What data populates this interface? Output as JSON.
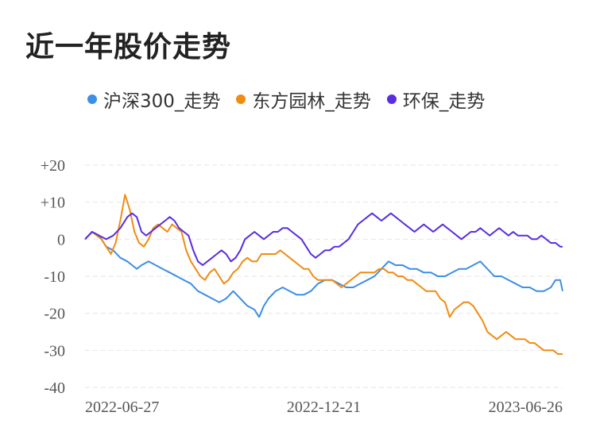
{
  "chart_data": {
    "type": "line",
    "title": "近一年股价走势",
    "xlabel": "",
    "ylabel": "",
    "ylim": [
      -40,
      20
    ],
    "y_ticks": [
      "+20",
      "+10",
      "0",
      "-10",
      "-20",
      "-30",
      "-40"
    ],
    "y_tick_values": [
      20,
      10,
      0,
      -10,
      -20,
      -30,
      -40
    ],
    "x_tick_labels": [
      "2022-06-27",
      "2022-12-21",
      "2023-06-26"
    ],
    "grid": true,
    "legend_position": "top",
    "series": [
      {
        "name": "沪深300_走势",
        "color": "#3b8fe6",
        "points": [
          [
            0,
            0
          ],
          [
            6,
            2
          ],
          [
            12,
            1
          ],
          [
            18,
            -2
          ],
          [
            24,
            -3
          ],
          [
            30,
            -5
          ],
          [
            36,
            -6
          ],
          [
            40,
            -7
          ],
          [
            44,
            -8
          ],
          [
            48,
            -7
          ],
          [
            54,
            -6
          ],
          [
            60,
            -7
          ],
          [
            66,
            -8
          ],
          [
            72,
            -9
          ],
          [
            78,
            -10
          ],
          [
            84,
            -11
          ],
          [
            90,
            -12
          ],
          [
            96,
            -14
          ],
          [
            102,
            -15
          ],
          [
            108,
            -16
          ],
          [
            114,
            -17
          ],
          [
            120,
            -16
          ],
          [
            126,
            -14
          ],
          [
            132,
            -16
          ],
          [
            138,
            -18
          ],
          [
            144,
            -19
          ],
          [
            148,
            -21
          ],
          [
            152,
            -18
          ],
          [
            156,
            -16
          ],
          [
            162,
            -14
          ],
          [
            168,
            -13
          ],
          [
            174,
            -14
          ],
          [
            180,
            -15
          ],
          [
            186,
            -15
          ],
          [
            192,
            -14
          ],
          [
            198,
            -12
          ],
          [
            204,
            -11
          ],
          [
            210,
            -11
          ],
          [
            216,
            -12
          ],
          [
            222,
            -13
          ],
          [
            228,
            -13
          ],
          [
            234,
            -12
          ],
          [
            240,
            -11
          ],
          [
            246,
            -10
          ],
          [
            252,
            -8
          ],
          [
            258,
            -6
          ],
          [
            264,
            -7
          ],
          [
            270,
            -7
          ],
          [
            276,
            -8
          ],
          [
            282,
            -8
          ],
          [
            288,
            -9
          ],
          [
            294,
            -9
          ],
          [
            300,
            -10
          ],
          [
            306,
            -10
          ],
          [
            312,
            -9
          ],
          [
            318,
            -8
          ],
          [
            324,
            -8
          ],
          [
            330,
            -7
          ],
          [
            336,
            -6
          ],
          [
            342,
            -8
          ],
          [
            348,
            -10
          ],
          [
            354,
            -10
          ],
          [
            360,
            -11
          ],
          [
            366,
            -12
          ],
          [
            372,
            -13
          ],
          [
            378,
            -13
          ],
          [
            384,
            -14
          ],
          [
            390,
            -14
          ],
          [
            396,
            -13
          ],
          [
            400,
            -11
          ],
          [
            404,
            -11
          ],
          [
            406,
            -14
          ]
        ]
      },
      {
        "name": "东方园林_走势",
        "color": "#f08c12",
        "points": [
          [
            0,
            0
          ],
          [
            6,
            2
          ],
          [
            10,
            1
          ],
          [
            14,
            0
          ],
          [
            18,
            -2
          ],
          [
            22,
            -4
          ],
          [
            26,
            -1
          ],
          [
            30,
            5
          ],
          [
            34,
            12
          ],
          [
            38,
            8
          ],
          [
            42,
            2
          ],
          [
            46,
            -1
          ],
          [
            50,
            -2
          ],
          [
            54,
            0
          ],
          [
            58,
            3
          ],
          [
            62,
            4
          ],
          [
            66,
            3
          ],
          [
            70,
            2
          ],
          [
            74,
            4
          ],
          [
            78,
            3
          ],
          [
            82,
            2
          ],
          [
            86,
            -3
          ],
          [
            90,
            -6
          ],
          [
            94,
            -8
          ],
          [
            98,
            -10
          ],
          [
            102,
            -11
          ],
          [
            106,
            -9
          ],
          [
            110,
            -8
          ],
          [
            114,
            -10
          ],
          [
            118,
            -12
          ],
          [
            122,
            -11
          ],
          [
            126,
            -9
          ],
          [
            130,
            -8
          ],
          [
            134,
            -6
          ],
          [
            138,
            -5
          ],
          [
            142,
            -6
          ],
          [
            146,
            -6
          ],
          [
            150,
            -4
          ],
          [
            154,
            -4
          ],
          [
            158,
            -4
          ],
          [
            162,
            -4
          ],
          [
            166,
            -3
          ],
          [
            170,
            -4
          ],
          [
            174,
            -5
          ],
          [
            178,
            -6
          ],
          [
            182,
            -7
          ],
          [
            186,
            -8
          ],
          [
            190,
            -8
          ],
          [
            194,
            -10
          ],
          [
            198,
            -11
          ],
          [
            202,
            -11
          ],
          [
            206,
            -11
          ],
          [
            210,
            -11
          ],
          [
            214,
            -12
          ],
          [
            218,
            -13
          ],
          [
            222,
            -12
          ],
          [
            226,
            -11
          ],
          [
            230,
            -10
          ],
          [
            234,
            -9
          ],
          [
            238,
            -9
          ],
          [
            242,
            -9
          ],
          [
            246,
            -9
          ],
          [
            250,
            -8
          ],
          [
            254,
            -8
          ],
          [
            258,
            -9
          ],
          [
            262,
            -9
          ],
          [
            266,
            -10
          ],
          [
            270,
            -10
          ],
          [
            274,
            -11
          ],
          [
            278,
            -11
          ],
          [
            282,
            -12
          ],
          [
            286,
            -13
          ],
          [
            290,
            -14
          ],
          [
            294,
            -14
          ],
          [
            298,
            -14
          ],
          [
            302,
            -16
          ],
          [
            306,
            -17
          ],
          [
            310,
            -21
          ],
          [
            314,
            -19
          ],
          [
            318,
            -18
          ],
          [
            322,
            -17
          ],
          [
            326,
            -17
          ],
          [
            330,
            -18
          ],
          [
            334,
            -20
          ],
          [
            338,
            -22
          ],
          [
            342,
            -25
          ],
          [
            346,
            -26
          ],
          [
            350,
            -27
          ],
          [
            354,
            -26
          ],
          [
            358,
            -25
          ],
          [
            362,
            -26
          ],
          [
            366,
            -27
          ],
          [
            370,
            -27
          ],
          [
            374,
            -27
          ],
          [
            378,
            -28
          ],
          [
            382,
            -28
          ],
          [
            386,
            -29
          ],
          [
            390,
            -30
          ],
          [
            394,
            -30
          ],
          [
            398,
            -30
          ],
          [
            402,
            -31
          ],
          [
            406,
            -31
          ]
        ]
      },
      {
        "name": "环保_走势",
        "color": "#5a2de0",
        "points": [
          [
            0,
            0
          ],
          [
            6,
            2
          ],
          [
            12,
            1
          ],
          [
            18,
            0
          ],
          [
            24,
            1
          ],
          [
            30,
            3
          ],
          [
            36,
            6
          ],
          [
            40,
            7
          ],
          [
            44,
            6
          ],
          [
            48,
            2
          ],
          [
            52,
            1
          ],
          [
            56,
            2
          ],
          [
            60,
            3
          ],
          [
            64,
            4
          ],
          [
            68,
            5
          ],
          [
            72,
            6
          ],
          [
            76,
            5
          ],
          [
            80,
            3
          ],
          [
            84,
            2
          ],
          [
            88,
            1
          ],
          [
            92,
            -3
          ],
          [
            96,
            -6
          ],
          [
            100,
            -7
          ],
          [
            104,
            -6
          ],
          [
            108,
            -5
          ],
          [
            112,
            -4
          ],
          [
            116,
            -3
          ],
          [
            120,
            -4
          ],
          [
            124,
            -6
          ],
          [
            128,
            -5
          ],
          [
            132,
            -3
          ],
          [
            136,
            0
          ],
          [
            140,
            1
          ],
          [
            144,
            2
          ],
          [
            148,
            1
          ],
          [
            152,
            0
          ],
          [
            156,
            1
          ],
          [
            160,
            2
          ],
          [
            164,
            2
          ],
          [
            168,
            3
          ],
          [
            172,
            3
          ],
          [
            176,
            2
          ],
          [
            180,
            1
          ],
          [
            184,
            0
          ],
          [
            188,
            -2
          ],
          [
            192,
            -4
          ],
          [
            196,
            -5
          ],
          [
            200,
            -4
          ],
          [
            204,
            -3
          ],
          [
            208,
            -3
          ],
          [
            212,
            -2
          ],
          [
            216,
            -2
          ],
          [
            220,
            -1
          ],
          [
            224,
            0
          ],
          [
            228,
            2
          ],
          [
            232,
            4
          ],
          [
            236,
            5
          ],
          [
            240,
            6
          ],
          [
            244,
            7
          ],
          [
            248,
            6
          ],
          [
            252,
            5
          ],
          [
            256,
            6
          ],
          [
            260,
            7
          ],
          [
            264,
            6
          ],
          [
            268,
            5
          ],
          [
            272,
            4
          ],
          [
            276,
            3
          ],
          [
            280,
            2
          ],
          [
            284,
            3
          ],
          [
            288,
            4
          ],
          [
            292,
            3
          ],
          [
            296,
            2
          ],
          [
            300,
            3
          ],
          [
            304,
            4
          ],
          [
            308,
            3
          ],
          [
            312,
            2
          ],
          [
            316,
            1
          ],
          [
            320,
            0
          ],
          [
            324,
            1
          ],
          [
            328,
            2
          ],
          [
            332,
            2
          ],
          [
            336,
            3
          ],
          [
            340,
            2
          ],
          [
            344,
            1
          ],
          [
            348,
            2
          ],
          [
            352,
            3
          ],
          [
            356,
            2
          ],
          [
            360,
            1
          ],
          [
            364,
            2
          ],
          [
            368,
            1
          ],
          [
            372,
            1
          ],
          [
            376,
            1
          ],
          [
            380,
            0
          ],
          [
            384,
            0
          ],
          [
            388,
            1
          ],
          [
            392,
            0
          ],
          [
            396,
            -1
          ],
          [
            400,
            -1
          ],
          [
            404,
            -2
          ],
          [
            406,
            -2
          ]
        ]
      }
    ]
  }
}
